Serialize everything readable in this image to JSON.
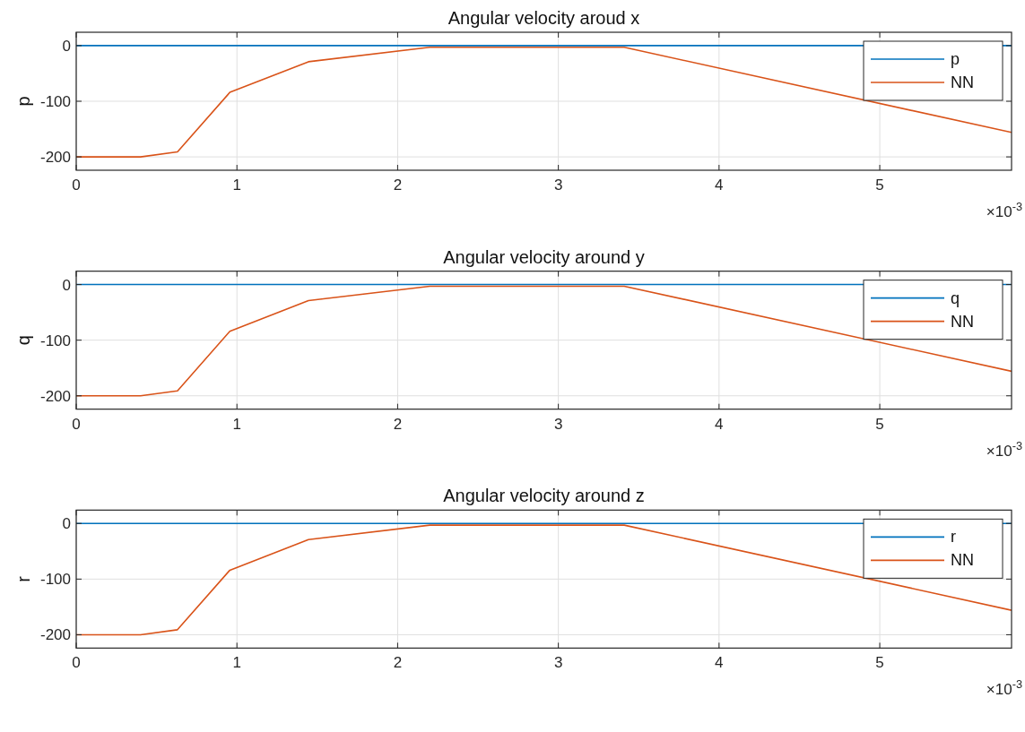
{
  "chart_data": [
    {
      "type": "line",
      "title": "Angular velocity aroud x",
      "ylabel": "p",
      "x": [
        0,
        0.4,
        0.63,
        0.956,
        1.445,
        2.2,
        3.41,
        5.82
      ],
      "series": [
        {
          "name": "p",
          "color": "#0072bd",
          "values": [
            0,
            0,
            0,
            0,
            0,
            0,
            0,
            0
          ]
        },
        {
          "name": "NN",
          "color": "#d95319",
          "values": [
            -200,
            -200,
            -191,
            -84,
            -29,
            -3,
            -3,
            -156
          ]
        }
      ],
      "xlim": [
        0,
        5.82
      ],
      "xticks": [
        0,
        1,
        2,
        3,
        4,
        5
      ],
      "ylim": [
        -224,
        24
      ],
      "yticks": [
        -200,
        -100,
        0
      ],
      "grid": true,
      "legend": "top right",
      "annotations": [
        "×10$^{-3}$"
      ]
    },
    {
      "type": "line",
      "title": "Angular velocity around y",
      "ylabel": "q",
      "x": [
        0,
        0.4,
        0.63,
        0.956,
        1.445,
        2.2,
        3.41,
        5.82
      ],
      "series": [
        {
          "name": "q",
          "color": "#0072bd",
          "values": [
            0,
            0,
            0,
            0,
            0,
            0,
            0,
            0
          ]
        },
        {
          "name": "NN",
          "color": "#d95319",
          "values": [
            -200,
            -200,
            -191,
            -84,
            -29,
            -3,
            -3,
            -156
          ]
        }
      ],
      "xlim": [
        0,
        5.82
      ],
      "xticks": [
        0,
        1,
        2,
        3,
        4,
        5
      ],
      "ylim": [
        -224,
        24
      ],
      "yticks": [
        -200,
        -100,
        0
      ],
      "grid": true,
      "legend": "top right",
      "annotations": [
        "×10$^{-3}$"
      ]
    },
    {
      "type": "line",
      "title": "Angular velocity around z",
      "ylabel": "r",
      "x": [
        0,
        0.4,
        0.63,
        0.956,
        1.445,
        2.2,
        3.41,
        5.82
      ],
      "series": [
        {
          "name": "r",
          "color": "#0072bd",
          "values": [
            0,
            0,
            0,
            0,
            0,
            0,
            0,
            0
          ]
        },
        {
          "name": "NN",
          "color": "#d95319",
          "values": [
            -200,
            -200,
            -191,
            -84,
            -29,
            -3,
            -3,
            -156
          ]
        }
      ],
      "xlim": [
        0,
        5.82
      ],
      "xticks": [
        0,
        1,
        2,
        3,
        4,
        5
      ],
      "ylim": [
        -224,
        24
      ],
      "yticks": [
        -200,
        -100,
        0
      ],
      "grid": true,
      "legend": "top right",
      "annotations": [
        "×10$^{-3}$"
      ]
    }
  ]
}
